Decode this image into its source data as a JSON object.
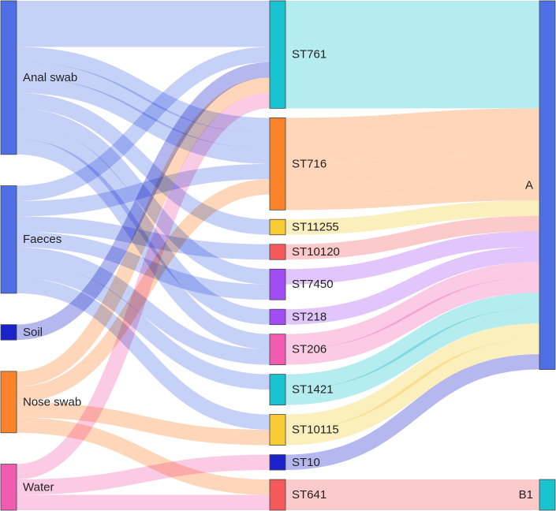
{
  "chart_data": {
    "type": "sankey",
    "title": "",
    "columns": [
      [
        "Anal swab",
        "Faeces",
        "Soil",
        "Nose swab",
        "Water"
      ],
      [
        "ST761",
        "ST716",
        "ST11255",
        "ST10120",
        "ST7450",
        "ST218",
        "ST206",
        "ST1421",
        "ST10115",
        "ST10",
        "ST641"
      ],
      [
        "A",
        "B1"
      ]
    ],
    "nodes": [
      {
        "id": "Anal swab",
        "label": "Anal swab",
        "color": "#4f6fe5"
      },
      {
        "id": "Faeces",
        "label": "Faeces",
        "color": "#4f6fe5"
      },
      {
        "id": "Soil",
        "label": "Soil",
        "color": "#1a22c9"
      },
      {
        "id": "Nose swab",
        "label": "Nose swab",
        "color": "#fb842b"
      },
      {
        "id": "Water",
        "label": "Water",
        "color": "#f25cb0"
      },
      {
        "id": "ST761",
        "label": "ST761",
        "color": "#19c3cf"
      },
      {
        "id": "ST716",
        "label": "ST716",
        "color": "#fb842b"
      },
      {
        "id": "ST11255",
        "label": "ST11255",
        "color": "#f7cc35"
      },
      {
        "id": "ST10120",
        "label": "ST10120",
        "color": "#f55a5a"
      },
      {
        "id": "ST7450",
        "label": "ST7450",
        "color": "#a24cf4"
      },
      {
        "id": "ST218",
        "label": "ST218",
        "color": "#a24cf4"
      },
      {
        "id": "ST206",
        "label": "ST206",
        "color": "#f25cb0"
      },
      {
        "id": "ST1421",
        "label": "ST1421",
        "color": "#19c3cf"
      },
      {
        "id": "ST10115",
        "label": "ST10115",
        "color": "#f7cc35"
      },
      {
        "id": "ST10",
        "label": "ST10",
        "color": "#1a22c9"
      },
      {
        "id": "ST641",
        "label": "ST641",
        "color": "#f55a5a"
      },
      {
        "id": "A",
        "label": "A",
        "color": "#4f6fe5"
      },
      {
        "id": "B1",
        "label": "B1",
        "color": "#19c3cf"
      }
    ],
    "links": [
      {
        "source": "Anal swab",
        "target": "ST761",
        "value": 1
      },
      {
        "source": "Anal swab",
        "target": "ST761",
        "value": 1
      },
      {
        "source": "Anal swab",
        "target": "ST761",
        "value": 1
      },
      {
        "source": "Anal swab",
        "target": "ST716",
        "value": 1
      },
      {
        "source": "Anal swab",
        "target": "ST716",
        "value": 1
      },
      {
        "source": "Anal swab",
        "target": "ST716",
        "value": 1
      },
      {
        "source": "Anal swab",
        "target": "ST11255",
        "value": 1
      },
      {
        "source": "Anal swab",
        "target": "ST7450",
        "value": 1
      },
      {
        "source": "Anal swab",
        "target": "ST218",
        "value": 1
      },
      {
        "source": "Anal swab",
        "target": "ST206",
        "value": 1
      },
      {
        "source": "Faeces",
        "target": "ST761",
        "value": 1
      },
      {
        "source": "Faeces",
        "target": "ST716",
        "value": 1
      },
      {
        "source": "Faeces",
        "target": "ST10120",
        "value": 1
      },
      {
        "source": "Faeces",
        "target": "ST7450",
        "value": 1
      },
      {
        "source": "Faeces",
        "target": "ST206",
        "value": 1
      },
      {
        "source": "Faeces",
        "target": "ST1421",
        "value": 1
      },
      {
        "source": "Faeces",
        "target": "ST10115",
        "value": 1
      },
      {
        "source": "Soil",
        "target": "ST761",
        "value": 1
      },
      {
        "source": "Nose swab",
        "target": "ST761",
        "value": 1
      },
      {
        "source": "Nose swab",
        "target": "ST716",
        "value": 1
      },
      {
        "source": "Nose swab",
        "target": "ST10115",
        "value": 1
      },
      {
        "source": "Nose swab",
        "target": "ST641",
        "value": 1
      },
      {
        "source": "Water",
        "target": "ST761",
        "value": 1
      },
      {
        "source": "Water",
        "target": "ST10",
        "value": 1
      },
      {
        "source": "Water",
        "target": "ST641",
        "value": 1
      },
      {
        "source": "ST761",
        "target": "A",
        "value": 1
      },
      {
        "source": "ST761",
        "target": "A",
        "value": 1
      },
      {
        "source": "ST761",
        "target": "A",
        "value": 1
      },
      {
        "source": "ST761",
        "target": "A",
        "value": 1
      },
      {
        "source": "ST761",
        "target": "A",
        "value": 1
      },
      {
        "source": "ST761",
        "target": "A",
        "value": 1
      },
      {
        "source": "ST761",
        "target": "A",
        "value": 1
      },
      {
        "source": "ST716",
        "target": "A",
        "value": 1
      },
      {
        "source": "ST716",
        "target": "A",
        "value": 1
      },
      {
        "source": "ST716",
        "target": "A",
        "value": 1
      },
      {
        "source": "ST716",
        "target": "A",
        "value": 1
      },
      {
        "source": "ST716",
        "target": "A",
        "value": 1
      },
      {
        "source": "ST716",
        "target": "A",
        "value": 1
      },
      {
        "source": "ST11255",
        "target": "A",
        "value": 1
      },
      {
        "source": "ST10120",
        "target": "A",
        "value": 1
      },
      {
        "source": "ST7450",
        "target": "A",
        "value": 1
      },
      {
        "source": "ST218",
        "target": "A",
        "value": 1
      },
      {
        "source": "ST206",
        "target": "A",
        "value": 1
      },
      {
        "source": "ST206",
        "target": "A",
        "value": 1
      },
      {
        "source": "ST1421",
        "target": "A",
        "value": 1
      },
      {
        "source": "ST1421",
        "target": "A",
        "value": 1
      },
      {
        "source": "ST10115",
        "target": "A",
        "value": 1
      },
      {
        "source": "ST10115",
        "target": "A",
        "value": 1
      },
      {
        "source": "ST10",
        "target": "A",
        "value": 1
      },
      {
        "source": "ST641",
        "target": "B1",
        "value": 2
      }
    ]
  }
}
